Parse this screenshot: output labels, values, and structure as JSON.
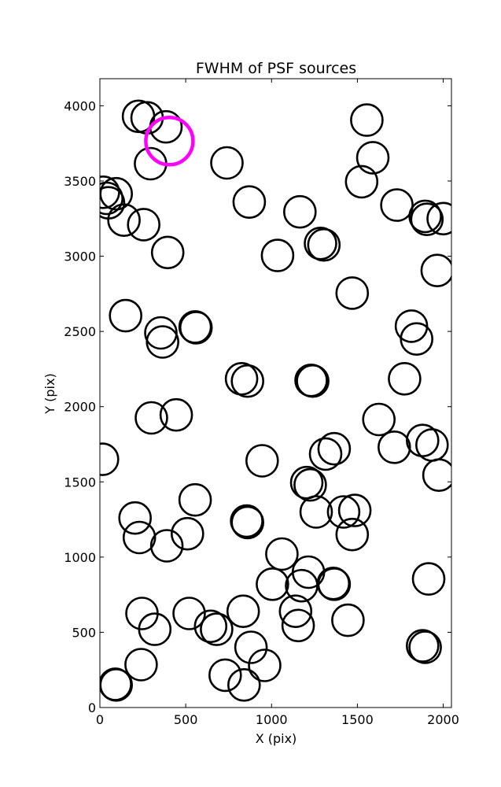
{
  "chart_data": {
    "type": "scatter",
    "title": "FWHM of PSF sources",
    "xlabel": "X (pix)",
    "ylabel": "Y (pix)",
    "xlim": [
      0,
      2048
    ],
    "ylim": [
      0,
      4180
    ],
    "xticks": [
      0,
      500,
      1000,
      1500,
      2000
    ],
    "yticks": [
      0,
      500,
      1000,
      1500,
      2000,
      2500,
      3000,
      3500,
      4000
    ],
    "marker": "open-circle",
    "grid": false,
    "series": [
      {
        "color": "#000000",
        "points": [
          [
            225,
            3930
          ],
          [
            275,
            3920
          ],
          [
            385,
            3860
          ],
          [
            295,
            3615
          ],
          [
            20,
            3425
          ],
          [
            40,
            3385
          ],
          [
            95,
            3415
          ],
          [
            50,
            3355
          ],
          [
            140,
            3240
          ],
          [
            255,
            3210
          ],
          [
            395,
            3025
          ],
          [
            740,
            3620
          ],
          [
            870,
            3360
          ],
          [
            1035,
            3005
          ],
          [
            1165,
            3295
          ],
          [
            1285,
            3085
          ],
          [
            1305,
            3075
          ],
          [
            1555,
            3905
          ],
          [
            1590,
            3655
          ],
          [
            1525,
            3495
          ],
          [
            1730,
            3340
          ],
          [
            1895,
            3265
          ],
          [
            1905,
            3245
          ],
          [
            2000,
            3250
          ],
          [
            1965,
            2905
          ],
          [
            1470,
            2755
          ],
          [
            1815,
            2535
          ],
          [
            1845,
            2450
          ],
          [
            1775,
            2185
          ],
          [
            150,
            2605
          ],
          [
            355,
            2490
          ],
          [
            365,
            2430
          ],
          [
            555,
            2530
          ],
          [
            560,
            2525
          ],
          [
            825,
            2185
          ],
          [
            860,
            2170
          ],
          [
            1230,
            2175
          ],
          [
            1240,
            2170
          ],
          [
            300,
            1925
          ],
          [
            445,
            1945
          ],
          [
            1625,
            1915
          ],
          [
            15,
            1650
          ],
          [
            945,
            1640
          ],
          [
            1315,
            1685
          ],
          [
            1365,
            1720
          ],
          [
            1715,
            1730
          ],
          [
            1880,
            1775
          ],
          [
            1935,
            1745
          ],
          [
            1975,
            1545
          ],
          [
            1205,
            1495
          ],
          [
            1225,
            1480
          ],
          [
            1260,
            1300
          ],
          [
            1420,
            1300
          ],
          [
            1485,
            1310
          ],
          [
            1470,
            1150
          ],
          [
            205,
            1260
          ],
          [
            230,
            1130
          ],
          [
            390,
            1075
          ],
          [
            510,
            1155
          ],
          [
            555,
            1380
          ],
          [
            855,
            1240
          ],
          [
            860,
            1230
          ],
          [
            1060,
            1020
          ],
          [
            1005,
            820
          ],
          [
            1175,
            810
          ],
          [
            1215,
            900
          ],
          [
            1360,
            825
          ],
          [
            1365,
            820
          ],
          [
            245,
            625
          ],
          [
            320,
            520
          ],
          [
            520,
            625
          ],
          [
            645,
            540
          ],
          [
            680,
            520
          ],
          [
            835,
            640
          ],
          [
            880,
            400
          ],
          [
            960,
            280
          ],
          [
            1140,
            640
          ],
          [
            1155,
            545
          ],
          [
            1445,
            580
          ],
          [
            1915,
            855
          ],
          [
            240,
            285
          ],
          [
            90,
            155
          ],
          [
            95,
            150
          ],
          [
            730,
            215
          ],
          [
            840,
            150
          ],
          [
            1880,
            410
          ],
          [
            1895,
            400
          ]
        ]
      },
      {
        "color": "#ff00ff",
        "points": [
          [
            405,
            3765
          ]
        ]
      }
    ]
  }
}
